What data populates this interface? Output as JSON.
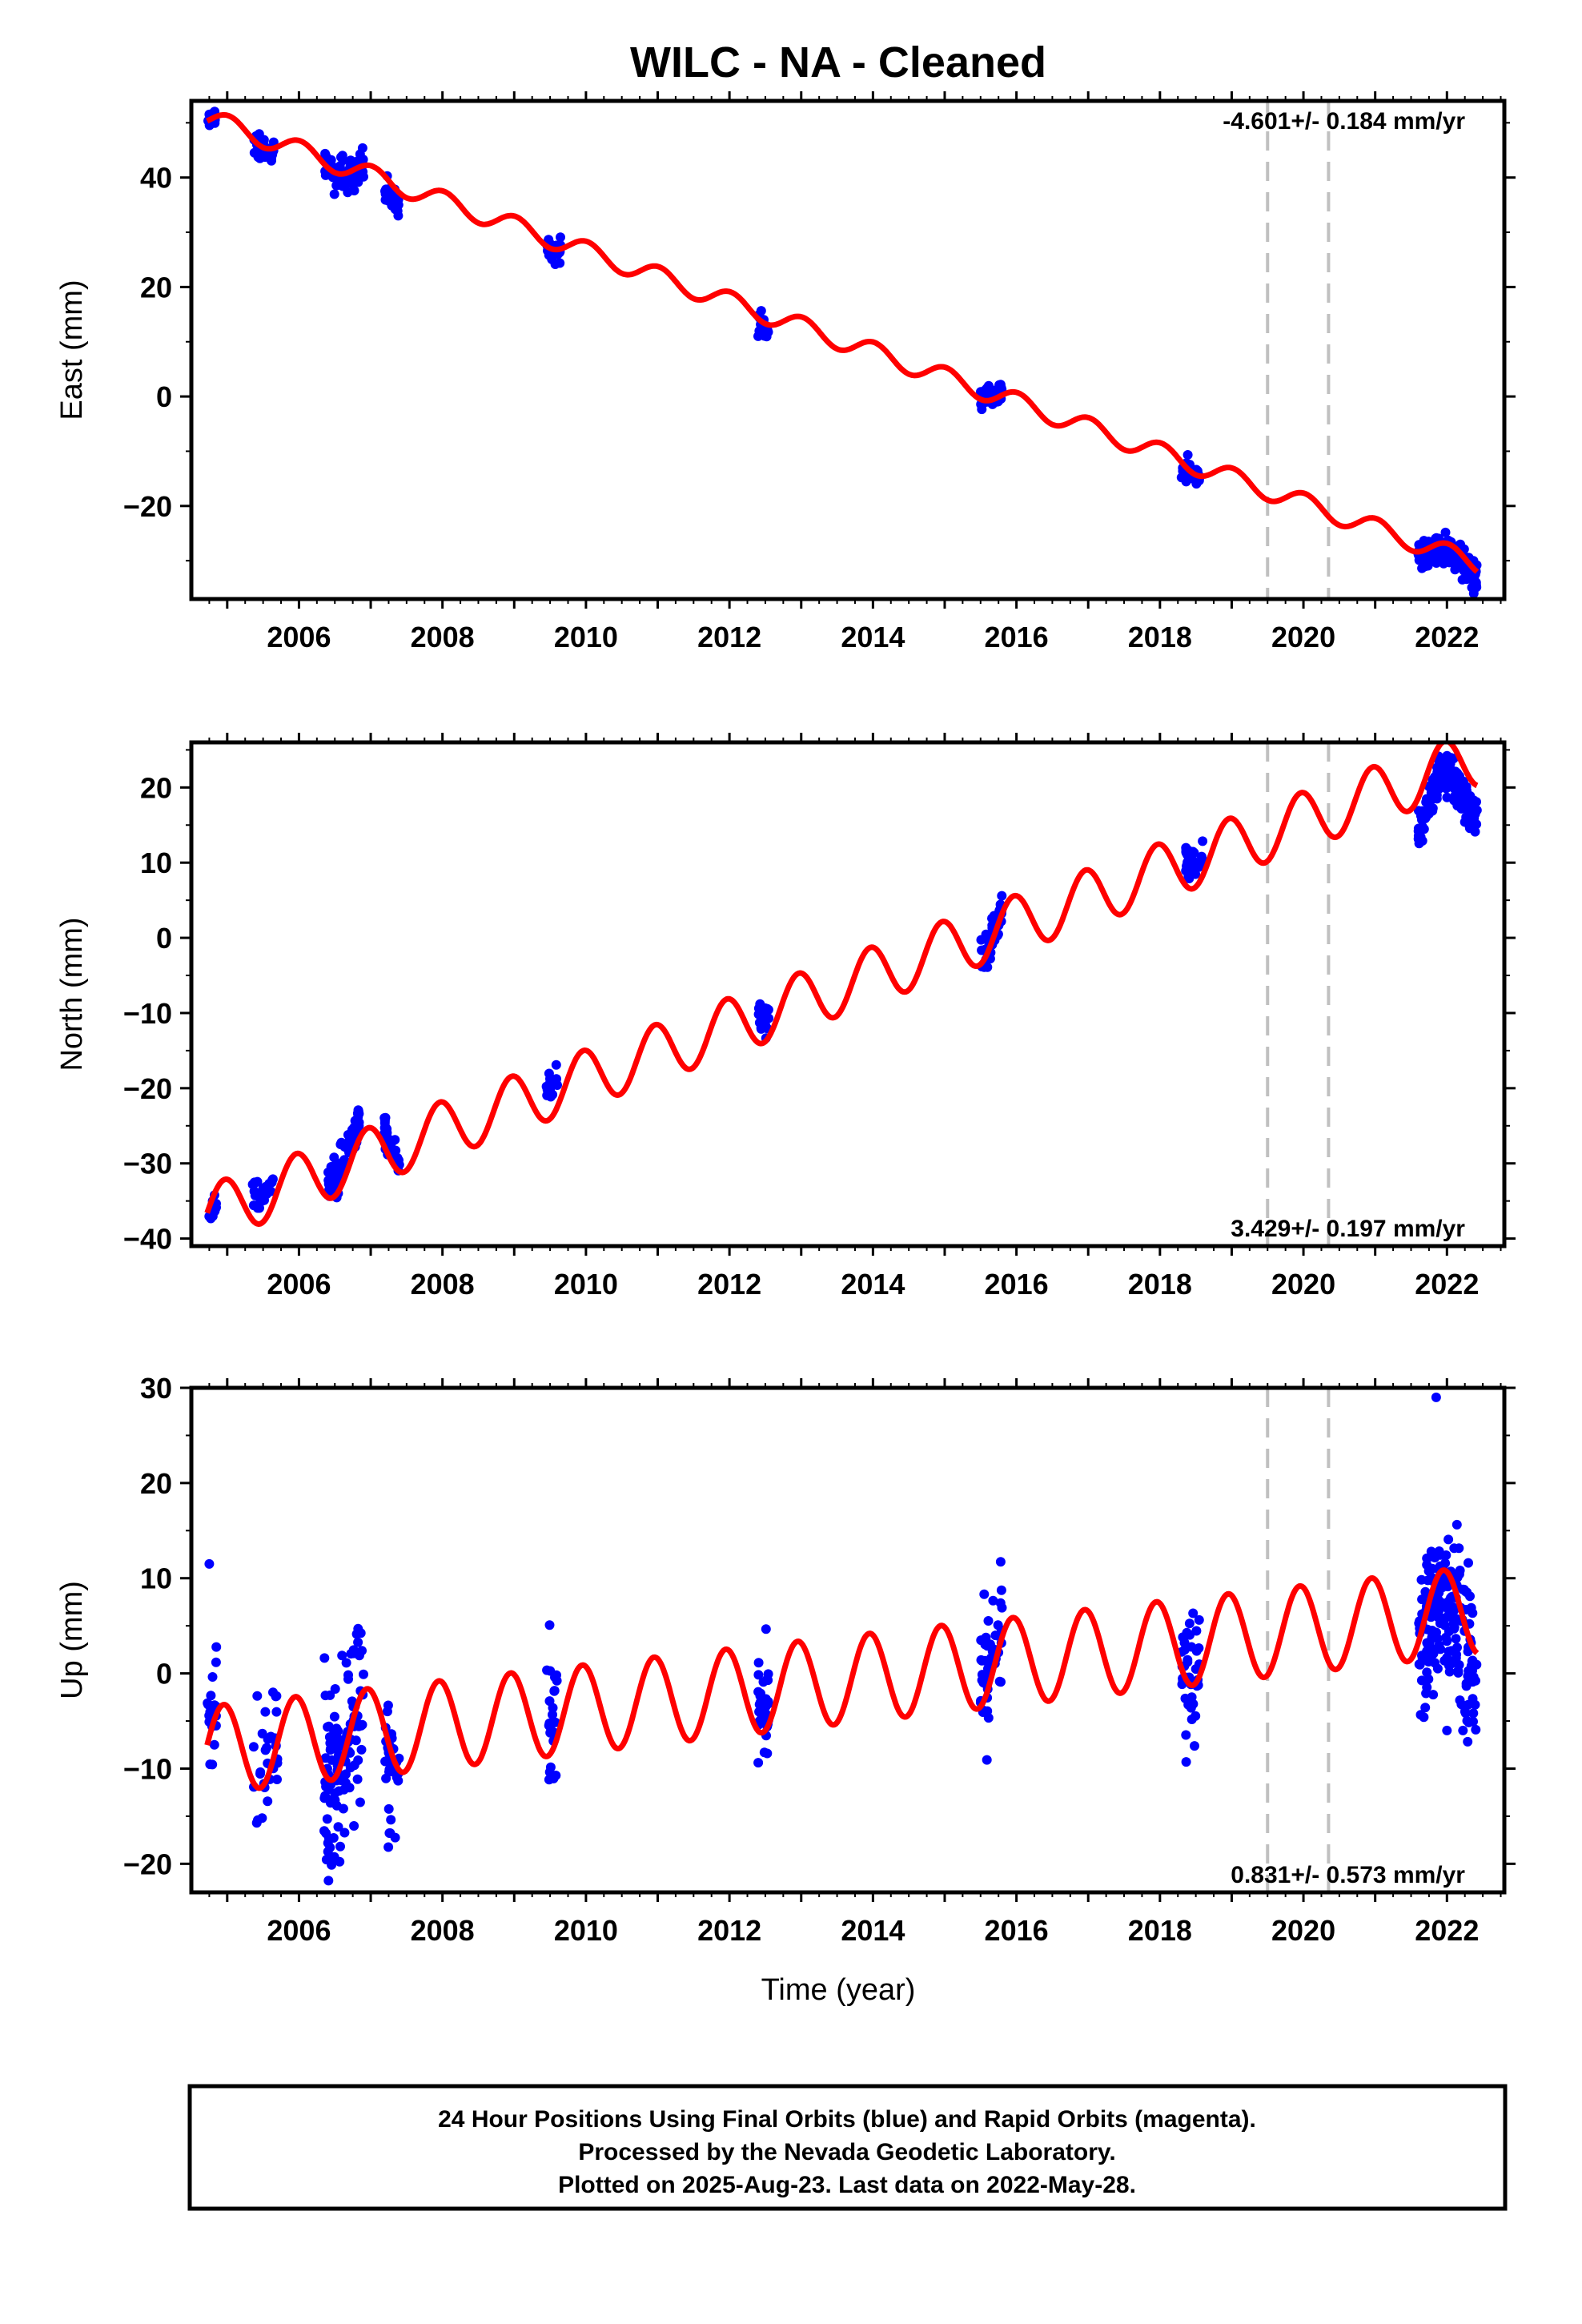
{
  "page_title": "WILC  - NA - Cleaned",
  "colors": {
    "final_orbits": "#0000ff",
    "model": "#ff0000",
    "event_lines": "#c0c0c0",
    "frame": "#000000",
    "background": "#ffffff"
  },
  "chart_data": [
    {
      "type": "scatter",
      "component": "east",
      "ylabel": "East (mm)",
      "xlabel": "",
      "xlim": [
        2004.5,
        2022.8
      ],
      "ylim": [
        -37,
        54
      ],
      "xticks": [
        2006,
        2008,
        2010,
        2012,
        2014,
        2016,
        2018,
        2020,
        2022
      ],
      "yticks": [
        -20,
        0,
        20,
        40
      ],
      "grid": false,
      "rate_text": "-4.601+/- 0.184 mm/yr",
      "rate_position": "top-right",
      "event_lines": [
        2019.5,
        2020.35
      ],
      "model": {
        "intercept": 50.5,
        "slope": -4.601,
        "t0": 2004.8,
        "annual_amp": 1.8,
        "annual_phase": 0.2
      },
      "clusters": [
        {
          "t0": 2004.72,
          "t1": 2004.85,
          "base": 51.0,
          "spread": 1.6,
          "n": 20
        },
        {
          "t0": 2005.35,
          "t1": 2005.65,
          "base": 44.5,
          "spread": 2.5,
          "n": 30
        },
        {
          "t0": 2006.35,
          "t1": 2006.9,
          "base": 40.0,
          "spread": 3.5,
          "n": 90
        },
        {
          "t0": 2007.2,
          "t1": 2007.4,
          "base": 35.0,
          "spread": 2.5,
          "n": 30
        },
        {
          "t0": 2009.45,
          "t1": 2009.65,
          "base": 26.5,
          "spread": 2.5,
          "n": 25
        },
        {
          "t0": 2012.4,
          "t1": 2012.55,
          "base": 11.5,
          "spread": 3.0,
          "n": 25
        },
        {
          "t0": 2015.5,
          "t1": 2015.8,
          "base": 1.0,
          "spread": 2.5,
          "n": 45
        },
        {
          "t0": 2018.3,
          "t1": 2018.55,
          "base": -14.5,
          "spread": 2.5,
          "n": 35
        },
        {
          "t0": 2021.6,
          "t1": 2022.42,
          "base": -29.0,
          "spread": 3.0,
          "n": 180
        }
      ]
    },
    {
      "type": "scatter",
      "component": "north",
      "ylabel": "North (mm)",
      "xlabel": "",
      "xlim": [
        2004.5,
        2022.8
      ],
      "ylim": [
        -41,
        26
      ],
      "xticks": [
        2006,
        2008,
        2010,
        2012,
        2014,
        2016,
        2018,
        2020,
        2022
      ],
      "yticks": [
        -40,
        -30,
        -20,
        -10,
        0,
        10,
        20
      ],
      "grid": false,
      "rate_text": "3.429+/- 0.197 mm/yr",
      "rate_position": "bottom-right",
      "event_lines": [
        2019.5,
        2020.35
      ],
      "model": {
        "intercept": -36.5,
        "slope": 3.429,
        "t0": 2004.8,
        "annual_amp": 3.8,
        "annual_phase": 0.55
      },
      "clusters": [
        {
          "t0": 2004.72,
          "t1": 2004.85,
          "base": -38.5,
          "spread": 1.5,
          "n": 15
        },
        {
          "t0": 2005.35,
          "t1": 2005.65,
          "base": -31.0,
          "spread": 2.0,
          "n": 30
        },
        {
          "t0": 2006.4,
          "t1": 2006.85,
          "base": -27.5,
          "spread": 3.0,
          "n": 90
        },
        {
          "t0": 2007.15,
          "t1": 2007.4,
          "base": -25.5,
          "spread": 2.5,
          "n": 30
        },
        {
          "t0": 2009.45,
          "t1": 2009.6,
          "base": -15.5,
          "spread": 2.0,
          "n": 20
        },
        {
          "t0": 2012.4,
          "t1": 2012.55,
          "base": -8.0,
          "spread": 2.5,
          "n": 25
        },
        {
          "t0": 2015.5,
          "t1": 2015.8,
          "base": 0.0,
          "spread": 2.5,
          "n": 45
        },
        {
          "t0": 2018.35,
          "t1": 2018.6,
          "base": 13.5,
          "spread": 2.5,
          "n": 35
        },
        {
          "t0": 2021.6,
          "t1": 2022.42,
          "base": 17.5,
          "spread": 3.0,
          "n": 180
        }
      ]
    },
    {
      "type": "scatter",
      "component": "up",
      "ylabel": "Up (mm)",
      "xlabel": "Time (year)",
      "xlim": [
        2004.5,
        2022.8
      ],
      "ylim": [
        -23,
        30
      ],
      "xticks": [
        2006,
        2008,
        2010,
        2012,
        2014,
        2016,
        2018,
        2020,
        2022
      ],
      "yticks": [
        -20,
        -10,
        0,
        10,
        20,
        30
      ],
      "grid": false,
      "rate_text": "0.831+/- 0.573 mm/yr",
      "rate_position": "bottom-right",
      "event_lines": [
        2019.5,
        2020.35
      ],
      "model": {
        "intercept": -8.0,
        "slope": 0.831,
        "t0": 2004.8,
        "annual_amp": 4.6,
        "annual_phase": 0.62
      },
      "outliers": [
        [
          2004.75,
          11.5
        ],
        [
          2021.85,
          29.0
        ],
        [
          2022.0,
          -6.0
        ]
      ],
      "clusters": [
        {
          "t0": 2004.72,
          "t1": 2004.85,
          "base": -1.0,
          "spread": 7.0,
          "n": 20
        },
        {
          "t0": 2005.35,
          "t1": 2005.7,
          "base": -8.0,
          "spread": 9.0,
          "n": 35
        },
        {
          "t0": 2006.35,
          "t1": 2006.9,
          "base": -9.0,
          "spread": 12.0,
          "n": 120
        },
        {
          "t0": 2007.2,
          "t1": 2007.4,
          "base": -14.0,
          "spread": 7.0,
          "n": 35
        },
        {
          "t0": 2009.45,
          "t1": 2009.6,
          "base": -2.0,
          "spread": 8.0,
          "n": 25
        },
        {
          "t0": 2012.4,
          "t1": 2012.55,
          "base": 0.0,
          "spread": 6.0,
          "n": 30
        },
        {
          "t0": 2015.5,
          "t1": 2015.8,
          "base": 3.5,
          "spread": 8.0,
          "n": 50
        },
        {
          "t0": 2018.3,
          "t1": 2018.55,
          "base": -1.0,
          "spread": 8.0,
          "n": 40
        },
        {
          "t0": 2021.6,
          "t1": 2022.42,
          "base": 6.0,
          "spread": 9.0,
          "n": 200
        }
      ]
    }
  ],
  "footer": {
    "line1": "24 Hour Positions Using Final Orbits (blue) and Rapid Orbits (magenta).",
    "line2": "Processed by the Nevada Geodetic Laboratory.",
    "line3": "Plotted on 2025-Aug-23. Last data on 2022-May-28."
  }
}
